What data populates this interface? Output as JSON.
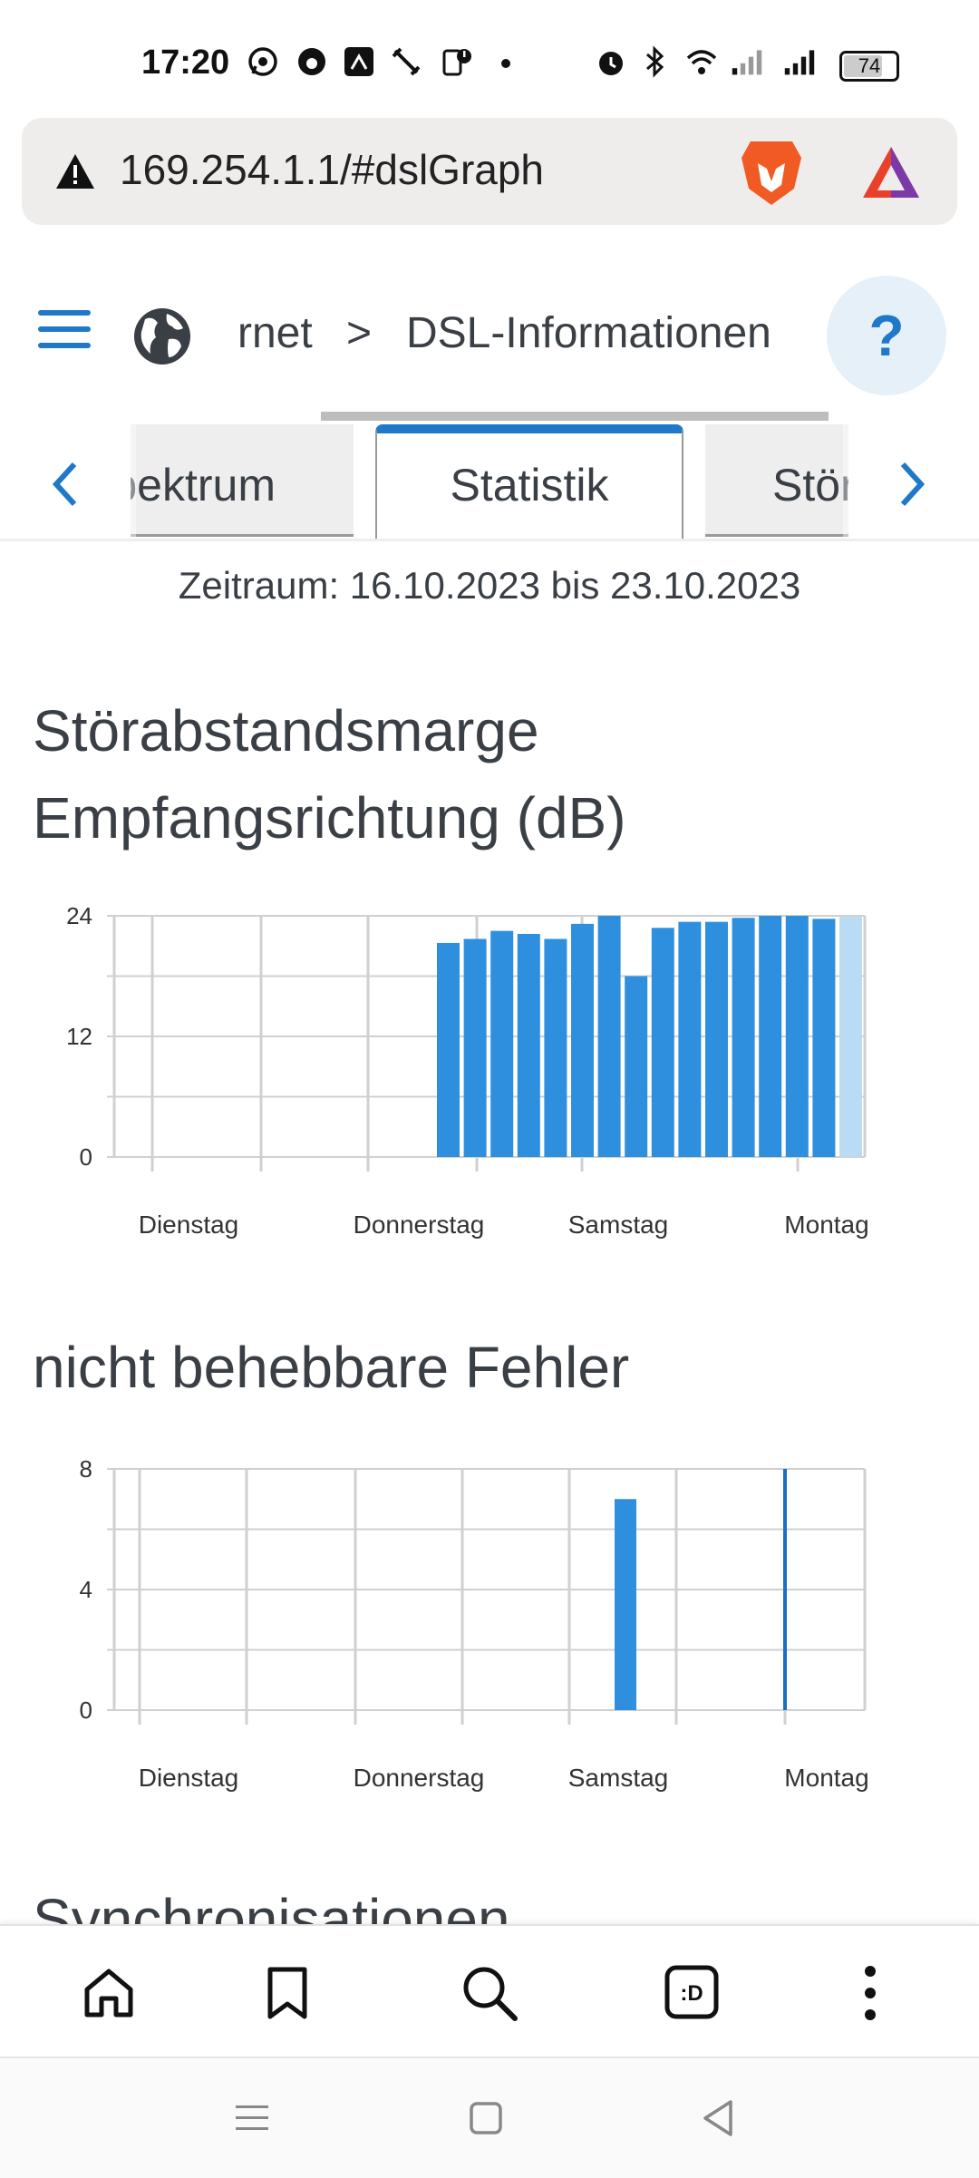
{
  "status_bar": {
    "time": "17:20",
    "battery": "74"
  },
  "browser": {
    "url": "169.254.1.1/#dslGraph"
  },
  "nav": {
    "crumb_partial": "rnet",
    "crumb_separator": ">",
    "page_title": "DSL-Informationen",
    "help_label": "?"
  },
  "tabs": [
    {
      "label": "Spektrum",
      "active": false
    },
    {
      "label": "Statistik",
      "active": true
    },
    {
      "label": "Störsi",
      "active": false
    }
  ],
  "range_text": "Zeitraum: 16.10.2023 bis 23.10.2023",
  "section_titles": {
    "snr_line1": "Störabstandsmarge",
    "snr_line2": "Empfangsrichtung (dB)",
    "fec": "nicht behebbare Fehler",
    "sync": "Synchronisationen"
  },
  "chart_data": [
    {
      "type": "bar",
      "title": "Störabstandsmarge Empfangsrichtung (dB)",
      "ylim": [
        0,
        24
      ],
      "yticks": [
        0,
        12,
        24
      ],
      "xticks": [
        "Dienstag",
        "Donnerstag",
        "Samstag",
        "Montag"
      ],
      "values": [
        21.3,
        21.7,
        22.5,
        22.2,
        21.7,
        23.2,
        24.0,
        18.0,
        22.8,
        23.4,
        23.4,
        23.8,
        24.0,
        24.0,
        23.7,
        23.9
      ],
      "last_bar_faded": true,
      "color": "#2f8fdf",
      "faded_color": "#b9dbf4"
    },
    {
      "type": "bar",
      "title": "nicht behebbare Fehler",
      "ylim": [
        0,
        8
      ],
      "yticks": [
        0,
        4,
        8
      ],
      "xticks": [
        "Dienstag",
        "Donnerstag",
        "Samstag",
        "Montag"
      ],
      "bars": [
        {
          "position": "Samstag",
          "value": 7
        }
      ],
      "marker": {
        "position": "Montag",
        "value": 8
      },
      "color": "#2f8fdf",
      "marker_color": "#1b6fc0"
    }
  ]
}
